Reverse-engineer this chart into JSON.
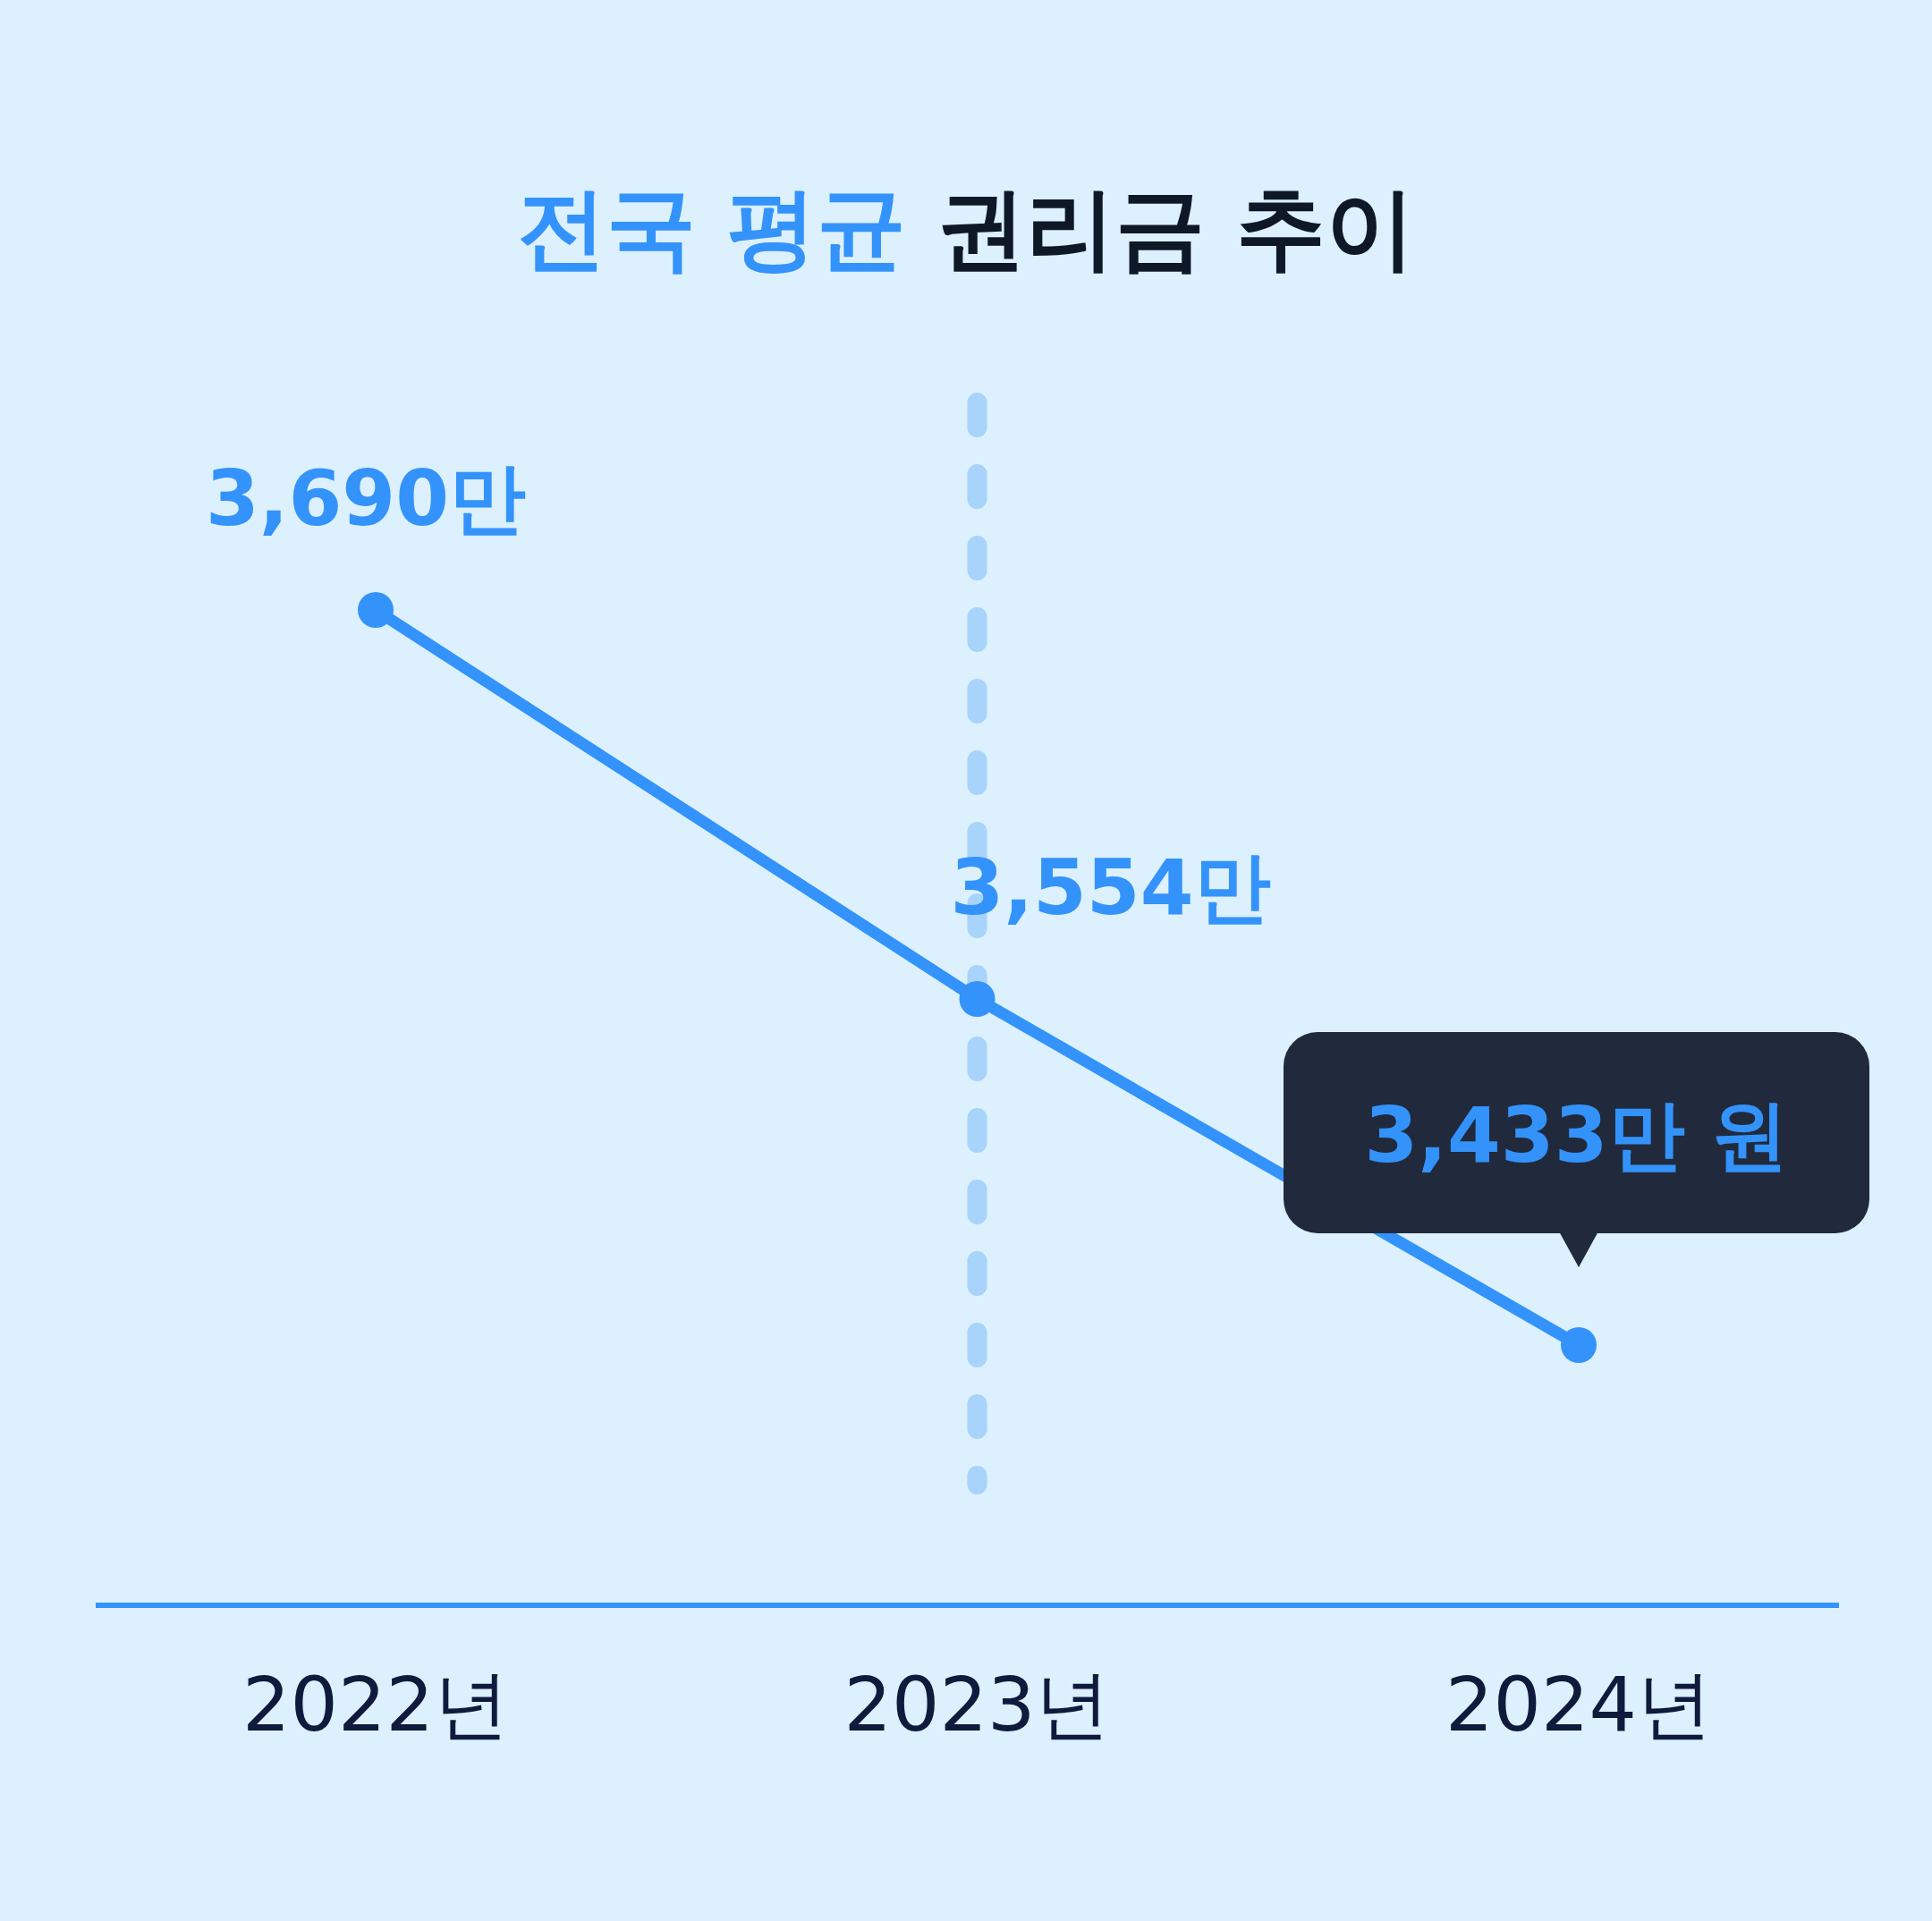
{
  "chart_data": {
    "type": "line",
    "title": "전국 평균 권리금 추이",
    "categories": [
      "2022년",
      "2023년",
      "2024년"
    ],
    "series": [
      {
        "color": "#3393fb",
        "values": [
          3690,
          3554,
          3433
        ],
        "value_labels": [
          "3,690만",
          "3,554만",
          "3,433만 원"
        ]
      }
    ],
    "marker": "circle",
    "line_style": "solid",
    "tick_labels": "x",
    "ref_lines": [
      {
        "axis": "x",
        "value": "2023년",
        "color": "#a8d3fb",
        "line_style": "dashed"
      }
    ]
  }
}
